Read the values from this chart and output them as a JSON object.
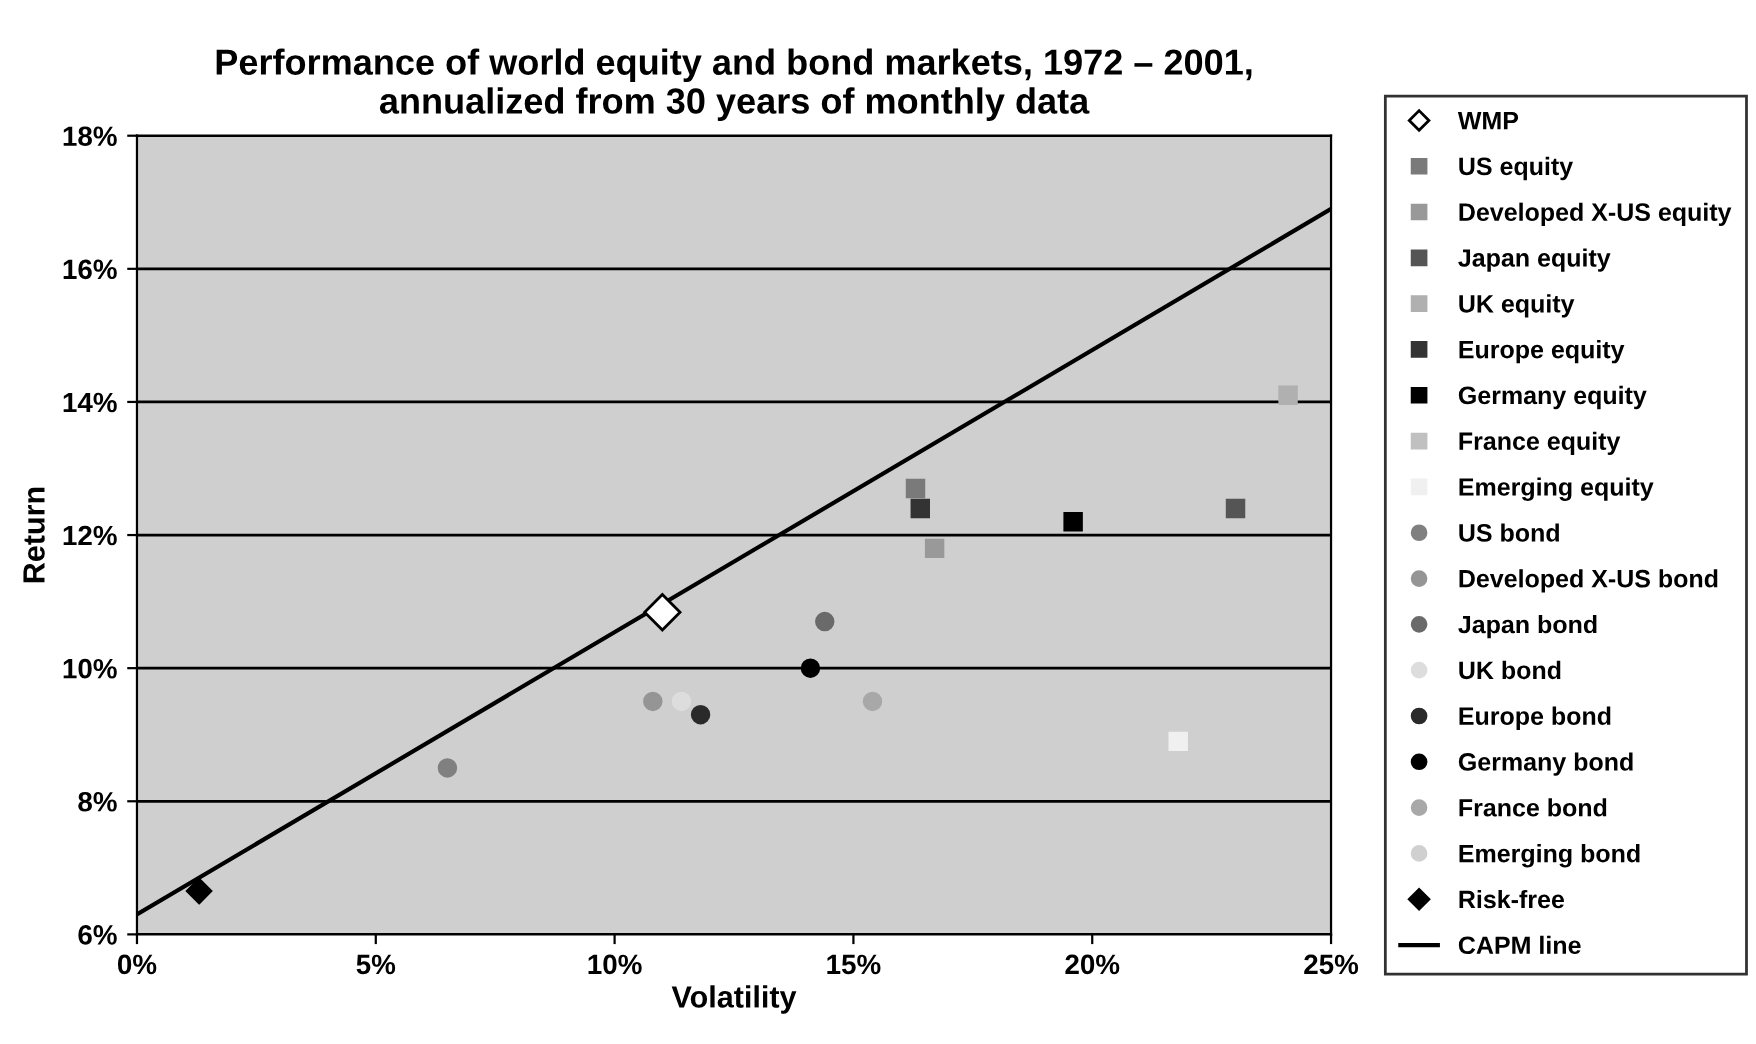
{
  "chart_data": {
    "type": "scatter",
    "title": "Performance of world equity and bond markets, 1972 – 2001,\nannualized from 30 years of monthly data",
    "xlabel": "Volatility",
    "ylabel": "Return",
    "xlim": [
      0,
      25
    ],
    "xticks": [
      {
        "value": 0,
        "label": "0%"
      },
      {
        "value": 5,
        "label": "5%"
      },
      {
        "value": 10,
        "label": "10%"
      },
      {
        "value": 15,
        "label": "15%"
      },
      {
        "value": 20,
        "label": "20%"
      },
      {
        "value": 25,
        "label": "25%"
      }
    ],
    "ylim": [
      6,
      18
    ],
    "yticks": [
      {
        "value": 6,
        "label": "6%"
      },
      {
        "value": 8,
        "label": "8%"
      },
      {
        "value": 10,
        "label": "10%"
      },
      {
        "value": 12,
        "label": "12%"
      },
      {
        "value": 14,
        "label": "14%"
      },
      {
        "value": 16,
        "label": "16%"
      },
      {
        "value": 18,
        "label": "18%"
      }
    ],
    "grid": "y",
    "legend": "right",
    "series": [
      {
        "name": "WMP",
        "marker": "diamond",
        "color": "#ffffff",
        "x": [
          11.0
        ],
        "values": [
          10.84
        ]
      },
      {
        "name": "US equity",
        "marker": "square",
        "color": "#7a7a7a",
        "x": [
          16.3
        ],
        "values": [
          12.7
        ]
      },
      {
        "name": "Developed X-US equity",
        "marker": "square",
        "color": "#999999",
        "x": [
          16.7
        ],
        "values": [
          11.8
        ]
      },
      {
        "name": "Japan equity",
        "marker": "square",
        "color": "#555555",
        "x": [
          23.0
        ],
        "values": [
          12.4
        ]
      },
      {
        "name": "UK equity",
        "marker": "square",
        "color": "#b0b0b0",
        "x": [
          24.1
        ],
        "values": [
          14.1
        ]
      },
      {
        "name": "Europe equity",
        "marker": "square",
        "color": "#333333",
        "x": [
          16.4
        ],
        "values": [
          12.4
        ]
      },
      {
        "name": "Germany equity",
        "marker": "square",
        "color": "#000000",
        "x": [
          19.6
        ],
        "values": [
          12.2
        ]
      },
      {
        "name": "France equity",
        "marker": "square",
        "color": "#c0c0c0",
        "x": [
          null
        ],
        "values": [
          null
        ]
      },
      {
        "name": "Emerging equity",
        "marker": "square",
        "color": "#f0f0f0",
        "x": [
          21.8
        ],
        "values": [
          8.9
        ]
      },
      {
        "name": "US bond",
        "marker": "circle",
        "color": "#808080",
        "x": [
          6.5
        ],
        "values": [
          8.5
        ]
      },
      {
        "name": "Developed X-US bond",
        "marker": "circle",
        "color": "#959595",
        "x": [
          10.8
        ],
        "values": [
          9.5
        ]
      },
      {
        "name": "Japan bond",
        "marker": "circle",
        "color": "#6a6a6a",
        "x": [
          14.4
        ],
        "values": [
          10.7
        ]
      },
      {
        "name": "UK bond",
        "marker": "circle",
        "color": "#dddddd",
        "x": [
          11.4
        ],
        "values": [
          9.5
        ]
      },
      {
        "name": "Europe bond",
        "marker": "circle",
        "color": "#2a2a2a",
        "x": [
          11.8
        ],
        "values": [
          9.3
        ]
      },
      {
        "name": "Germany bond",
        "marker": "circle",
        "color": "#000000",
        "x": [
          14.1
        ],
        "values": [
          10.0
        ]
      },
      {
        "name": "France bond",
        "marker": "circle",
        "color": "#a8a8a8",
        "x": [
          15.4
        ],
        "values": [
          9.5
        ]
      },
      {
        "name": "Emerging bond",
        "marker": "circle",
        "color": "#d0d0d0",
        "x": [
          null
        ],
        "values": [
          null
        ]
      },
      {
        "name": "Risk-free",
        "marker": "diamond",
        "color": "#000000",
        "x": [
          1.3
        ],
        "values": [
          6.65
        ]
      },
      {
        "name": "CAPM line",
        "type": "line",
        "marker": "none",
        "color": "#000000",
        "x": [
          0,
          25
        ],
        "values": [
          6.3,
          16.9
        ]
      }
    ]
  }
}
